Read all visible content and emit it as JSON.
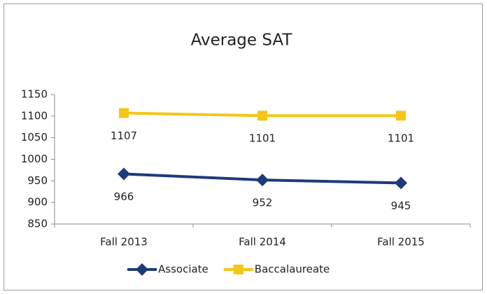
{
  "chart_data": {
    "type": "line",
    "title": "Average SAT",
    "categories": [
      "Fall 2013",
      "Fall 2014",
      "Fall 2015"
    ],
    "series": [
      {
        "name": "Associate",
        "color": "#1f3a7a",
        "marker": "diamond",
        "values": [
          966,
          952,
          945
        ]
      },
      {
        "name": "Baccalaureate",
        "color": "#f5c518",
        "marker": "square",
        "values": [
          1107,
          1101,
          1101
        ]
      }
    ],
    "ylim": [
      850,
      1150
    ],
    "yticks": [
      850,
      900,
      950,
      1000,
      1050,
      1100,
      1150
    ],
    "grid": false,
    "legend": "bottom"
  }
}
